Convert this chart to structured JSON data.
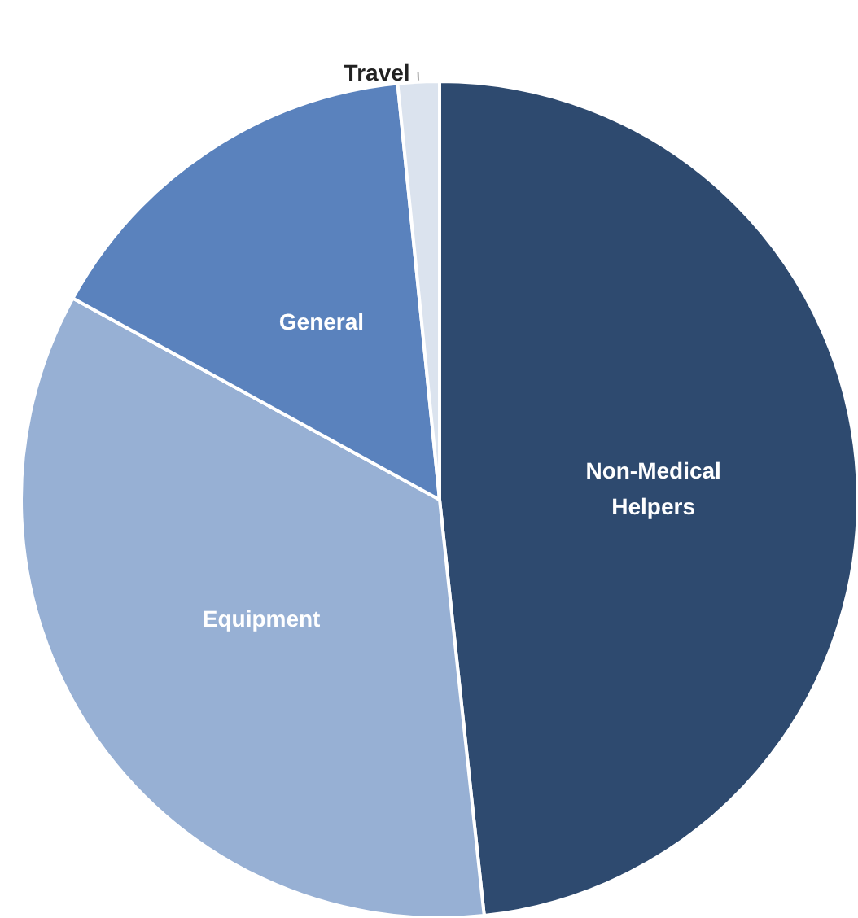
{
  "chart_data": {
    "type": "pie",
    "categories": [
      "Non-Medical\nHelpers",
      "Equipment",
      "General",
      "Travel"
    ],
    "values": [
      48.3,
      34.7,
      15.4,
      1.6
    ],
    "colors": [
      "#2e4a6f",
      "#97b0d4",
      "#5a82bd",
      "#dbe3ee"
    ]
  }
}
